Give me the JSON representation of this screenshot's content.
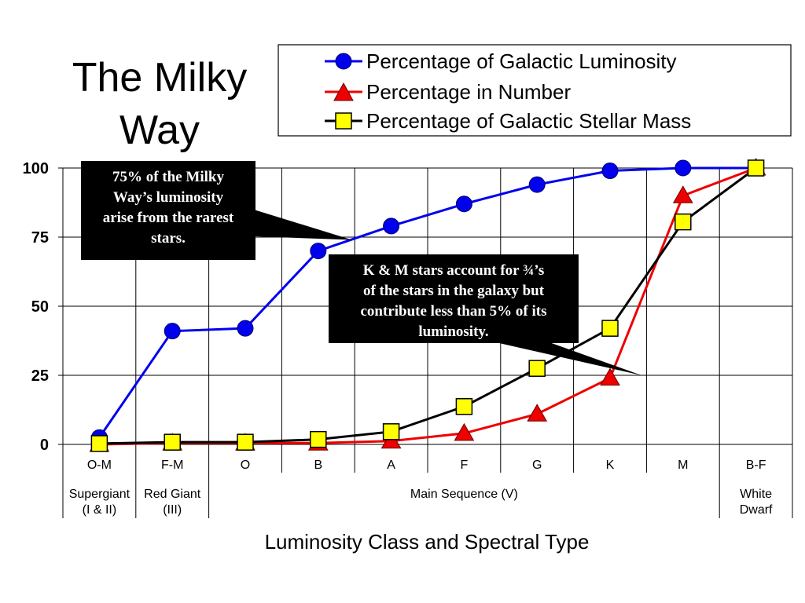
{
  "title_lines": [
    "The Milky",
    "Way"
  ],
  "chart_data": {
    "type": "line",
    "categories": [
      "O-M",
      "F-M",
      "O",
      "B",
      "A",
      "F",
      "G",
      "K",
      "M",
      "B-F"
    ],
    "groups": [
      {
        "label_lines": [
          "Supergiant",
          "(I & II)"
        ],
        "categories": [
          "O-M"
        ]
      },
      {
        "label_lines": [
          "Red Giant",
          "(III)"
        ],
        "categories": [
          "F-M"
        ]
      },
      {
        "label_lines": [
          "Main Sequence (V)"
        ],
        "categories": [
          "O",
          "B",
          "A",
          "F",
          "G",
          "K",
          "M"
        ]
      },
      {
        "label_lines": [
          "White",
          "Dwarf"
        ],
        "categories": [
          "B-F"
        ]
      }
    ],
    "xlabel": "Luminosity Class and Spectral Type",
    "ylabel": "",
    "ylim": [
      0,
      100
    ],
    "yticks": [
      0,
      25,
      50,
      75,
      100
    ],
    "grid": true,
    "legend": "top-right",
    "series": [
      {
        "name": "Percentage of Galactic Luminosity",
        "color": "#0000ee",
        "marker": "circle",
        "values": [
          2.5,
          41,
          42,
          70,
          79,
          87,
          94,
          99,
          100,
          100
        ]
      },
      {
        "name": "Percentage in Number",
        "color": "#ee0000",
        "marker": "triangle",
        "values": [
          0,
          0.5,
          0.5,
          0.5,
          1.2,
          4,
          11,
          24,
          90,
          100
        ]
      },
      {
        "name": "Percentage of Galactic Stellar Mass",
        "color": "#000000",
        "marker": "square",
        "marker_fill": "#ffff00",
        "values": [
          0.3,
          0.8,
          0.8,
          1.8,
          4.6,
          13.7,
          27.5,
          42,
          80.5,
          100
        ]
      }
    ],
    "annotations": [
      {
        "name": "luminosity-callout",
        "lines": [
          "75% of the Milky",
          "Way’s luminosity",
          "arise from the rarest",
          "stars."
        ],
        "target": {
          "category": "A",
          "value": 74
        }
      },
      {
        "name": "km-stars-callout",
        "lines": [
          "K & M stars account for ¾’s",
          "of the stars in the galaxy but",
          "contribute less than 5% of its",
          "luminosity."
        ],
        "target": {
          "category": "K",
          "value": 25
        }
      }
    ]
  }
}
